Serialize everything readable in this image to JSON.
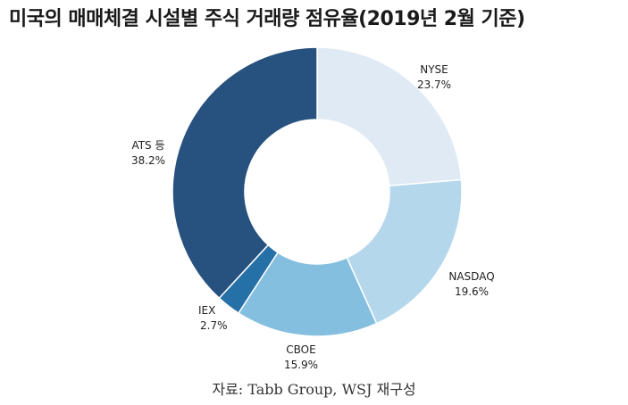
{
  "title": "미국의 매매체결 시설별 주식 거래량 점유율(2019년 2월 기준)",
  "source": "자료: Tabb Group, WSJ 재구성",
  "chart_data": {
    "type": "pie",
    "title": "미국의 매매체결 시설별 주식 거래량 점유율(2019년 2월 기준)",
    "donut": true,
    "categories": [
      "NYSE",
      "NASDAQ",
      "CBOE",
      "IEX",
      "ATS 등"
    ],
    "values": [
      23.7,
      19.6,
      15.9,
      2.7,
      38.2
    ],
    "value_labels": [
      "23.7%",
      "19.6%",
      "15.9%",
      "2.7%",
      "38.2%"
    ],
    "colors": [
      "#dfeaf5",
      "#b5d7ec",
      "#85bfe0",
      "#2670a8",
      "#27517e"
    ],
    "legend": "none"
  }
}
